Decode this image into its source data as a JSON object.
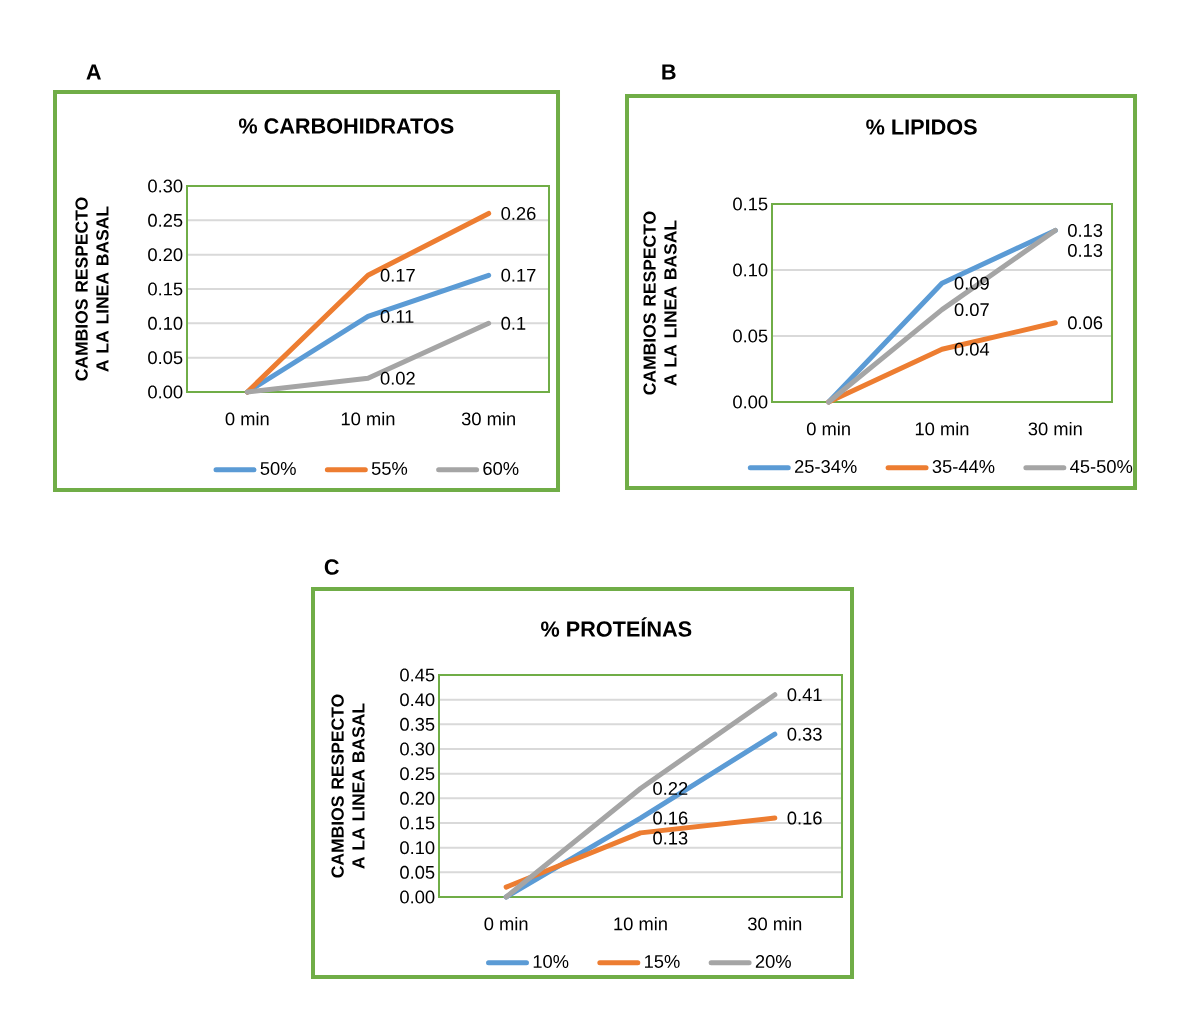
{
  "chart_data": [
    {
      "type": "line",
      "title": "% CARBOHIDRATOS",
      "ylabel": "CAMBIOS RESPECTO A LA LINEA BASAL",
      "annotations": [
        "A"
      ],
      "categories": [
        "0 min",
        "10 min",
        "30 min"
      ],
      "series": [
        {
          "name": "50%",
          "color": "#5b9bd5",
          "values": [
            0,
            0.11,
            0.17
          ],
          "value_labels": [
            null,
            "0.11",
            "0.17"
          ]
        },
        {
          "name": "55%",
          "color": "#ed7d31",
          "values": [
            0,
            0.17,
            0.26
          ],
          "value_labels": [
            null,
            "0.17",
            "0.26"
          ]
        },
        {
          "name": "60%",
          "color": "#a5a5a5",
          "values": [
            0,
            0.02,
            0.1
          ],
          "value_labels": [
            null,
            "0.02",
            "0.1"
          ]
        }
      ],
      "ylim": [
        0,
        0.3
      ],
      "yticks": [
        {
          "value": 0,
          "label": "0.00"
        },
        {
          "value": 0.05,
          "label": "0.05"
        },
        {
          "value": 0.1,
          "label": "0.10"
        },
        {
          "value": 0.15,
          "label": "0.15"
        },
        {
          "value": 0.2,
          "label": "0.20"
        },
        {
          "value": 0.25,
          "label": "0.25"
        },
        {
          "value": 0.3,
          "label": "0.30"
        }
      ],
      "grid": "y",
      "legend": "bottom"
    },
    {
      "type": "line",
      "title": "% LIPIDOS",
      "ylabel": "CAMBIOS RESPECTO A LA LINEA BASAL",
      "annotations": [
        "B"
      ],
      "categories": [
        "0 min",
        "10 min",
        "30 min"
      ],
      "series": [
        {
          "name": "25-34%",
          "color": "#5b9bd5",
          "values": [
            0,
            0.09,
            0.13
          ],
          "value_labels": [
            null,
            "0.09",
            "0.13"
          ]
        },
        {
          "name": "35-44%",
          "color": "#ed7d31",
          "values": [
            0,
            0.04,
            0.06
          ],
          "value_labels": [
            null,
            "0.04",
            "0.06"
          ]
        },
        {
          "name": "45-50%",
          "color": "#a5a5a5",
          "values": [
            0,
            0.07,
            0.13
          ],
          "value_labels": [
            null,
            "0.07",
            "0.13"
          ]
        }
      ],
      "ylim": [
        0,
        0.15
      ],
      "yticks": [
        {
          "value": 0,
          "label": "0.00"
        },
        {
          "value": 0.05,
          "label": "0.05"
        },
        {
          "value": 0.1,
          "label": "0.10"
        },
        {
          "value": 0.15,
          "label": "0.15"
        }
      ],
      "grid": "y",
      "legend": "bottom"
    },
    {
      "type": "line",
      "title": "% PROTEÍNAS",
      "ylabel": "CAMBIOS RESPECTO A LA LINEA BASAL",
      "annotations": [
        "C"
      ],
      "categories": [
        "0 min",
        "10 min",
        "30 min"
      ],
      "series": [
        {
          "name": "10%",
          "color": "#5b9bd5",
          "values": [
            0,
            0.16,
            0.33
          ],
          "value_labels": [
            null,
            "0.16",
            "0.33"
          ]
        },
        {
          "name": "15%",
          "color": "#ed7d31",
          "values": [
            0.02,
            0.13,
            0.16
          ],
          "value_labels": [
            null,
            "0.13",
            "0.16"
          ]
        },
        {
          "name": "20%",
          "color": "#a5a5a5",
          "values": [
            0,
            0.22,
            0.41
          ],
          "value_labels": [
            null,
            "0.22",
            "0.41"
          ]
        }
      ],
      "ylim": [
        0,
        0.45
      ],
      "yticks": [
        {
          "value": 0,
          "label": "0.00"
        },
        {
          "value": 0.05,
          "label": "0.05"
        },
        {
          "value": 0.1,
          "label": "0.10"
        },
        {
          "value": 0.15,
          "label": "0.15"
        },
        {
          "value": 0.2,
          "label": "0.20"
        },
        {
          "value": 0.25,
          "label": "0.25"
        },
        {
          "value": 0.3,
          "label": "0.30"
        },
        {
          "value": 0.35,
          "label": "0.35"
        },
        {
          "value": 0.4,
          "label": "0.40"
        },
        {
          "value": 0.45,
          "label": "0.45"
        }
      ],
      "grid": "y",
      "legend": "bottom"
    }
  ]
}
